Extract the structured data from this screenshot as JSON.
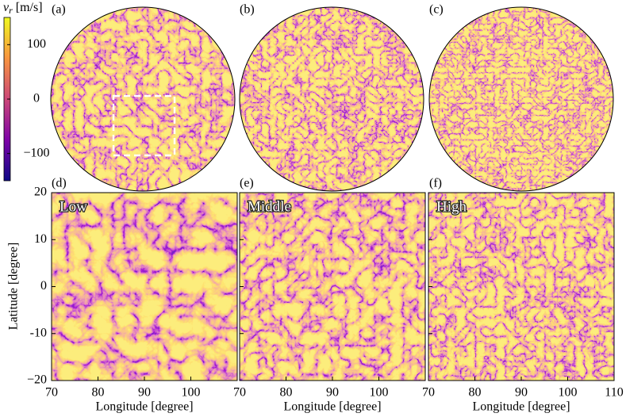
{
  "colorbar": {
    "symbol": "v",
    "subscript": "r",
    "unit": "[m/s]",
    "zlim": [
      -150,
      150
    ],
    "ticks": [
      {
        "value": 100,
        "label": "100"
      },
      {
        "value": 0,
        "label": "0"
      },
      {
        "value": -100,
        "label": "−100"
      }
    ]
  },
  "spheres": [
    {
      "label": "(a)"
    },
    {
      "label": "(b)"
    },
    {
      "label": "(c)"
    }
  ],
  "maps": [
    {
      "label": "(d)",
      "title": "Low",
      "xlabel": "Longitude [degree]",
      "xlim": [
        70,
        110
      ],
      "xticks": [
        70,
        80,
        90,
        100
      ]
    },
    {
      "label": "(e)",
      "title": "Middle",
      "xlabel": "Longitude [degree]",
      "xlim": [
        70,
        110
      ],
      "xticks": [
        70,
        80,
        90,
        100
      ]
    },
    {
      "label": "(f)",
      "title": "High",
      "xlabel": "Longitude [degree]",
      "xlim": [
        70,
        110
      ],
      "xticks": [
        70,
        80,
        90,
        100,
        110
      ]
    }
  ],
  "ylabel": "Latitude [degree]",
  "ylim": [
    -20,
    20
  ],
  "yticks": [
    20,
    10,
    0,
    -10,
    {
      "value": -20,
      "label": "−20"
    }
  ]
}
